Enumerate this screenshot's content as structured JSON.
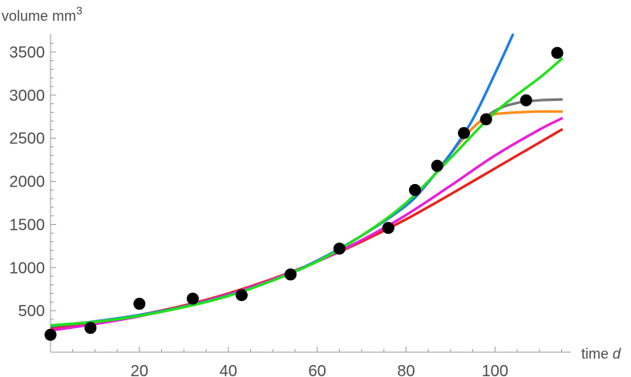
{
  "chart_data": {
    "type": "scatter",
    "xlabel_text": "time",
    "xlabel_var": "d",
    "ylabel_text": "volume mm",
    "ylabel_sup": "3",
    "xlim": [
      0,
      116
    ],
    "ylim": [
      200,
      3700
    ],
    "x_ticks": [
      20,
      40,
      60,
      80,
      100
    ],
    "x_tick_labels": [
      "20",
      "40",
      "60",
      "80",
      "100"
    ],
    "y_ticks": [
      500,
      1000,
      1500,
      2000,
      2500,
      3000,
      3500
    ],
    "y_tick_labels": [
      "500",
      "1000",
      "1500",
      "2000",
      "2500",
      "3000",
      "3500"
    ],
    "points": {
      "x": [
        0,
        9,
        20,
        32,
        43,
        54,
        65,
        76,
        82,
        87,
        93,
        98,
        107,
        114
      ],
      "y": [
        220,
        300,
        580,
        640,
        680,
        920,
        1220,
        1460,
        1900,
        2180,
        2560,
        2720,
        2940,
        3490
      ],
      "color": "#000000"
    },
    "series": [
      {
        "color": "#e8221b",
        "x": [
          0,
          10,
          20,
          30,
          40,
          50,
          60,
          70,
          80,
          90,
          100,
          110,
          115
        ],
        "y": [
          290,
          360,
          450,
          560,
          700,
          870,
          1070,
          1300,
          1560,
          1850,
          2150,
          2450,
          2600
        ]
      },
      {
        "color": "#e81ed8",
        "x": [
          0,
          10,
          20,
          30,
          40,
          50,
          60,
          70,
          80,
          90,
          100,
          110,
          115
        ],
        "y": [
          270,
          345,
          435,
          548,
          688,
          862,
          1070,
          1318,
          1610,
          1950,
          2300,
          2600,
          2730
        ]
      },
      {
        "color": "#777777",
        "x": [
          0,
          10,
          20,
          30,
          40,
          50,
          60,
          70,
          80,
          85,
          90,
          95,
          100,
          105,
          110,
          115
        ],
        "y": [
          320,
          375,
          450,
          545,
          675,
          850,
          1080,
          1370,
          1720,
          1990,
          2320,
          2620,
          2820,
          2910,
          2940,
          2950
        ]
      },
      {
        "color": "#ff8c1a",
        "x": [
          0,
          10,
          20,
          30,
          40,
          50,
          60,
          70,
          80,
          85,
          90,
          95,
          98,
          100,
          105,
          110,
          115
        ],
        "y": [
          320,
          375,
          450,
          545,
          675,
          850,
          1080,
          1370,
          1720,
          1990,
          2320,
          2620,
          2740,
          2780,
          2800,
          2810,
          2810
        ]
      },
      {
        "color": "#1a7fe8",
        "x": [
          0,
          10,
          20,
          30,
          40,
          50,
          60,
          70,
          80,
          85,
          90,
          95,
          100,
          104
        ],
        "y": [
          320,
          375,
          450,
          545,
          675,
          850,
          1080,
          1370,
          1720,
          1990,
          2320,
          2720,
          3250,
          3700
        ]
      },
      {
        "color": "#22e01b",
        "x": [
          0,
          10,
          20,
          30,
          40,
          50,
          60,
          70,
          80,
          90,
          100,
          110,
          115
        ],
        "y": [
          330,
          370,
          440,
          540,
          670,
          850,
          1070,
          1370,
          1750,
          2270,
          2800,
          3200,
          3420
        ]
      }
    ]
  }
}
